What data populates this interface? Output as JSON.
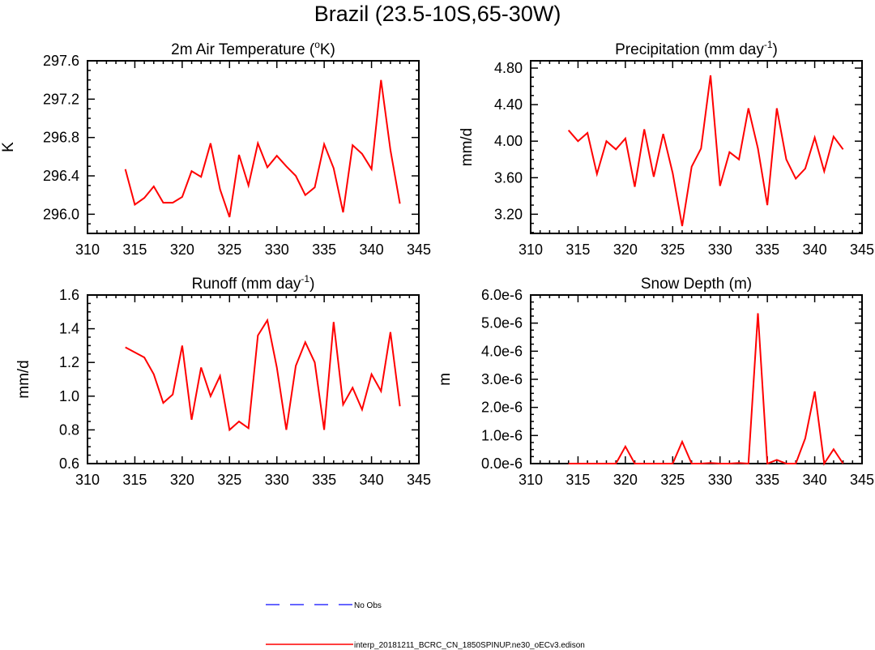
{
  "title": "Brazil (23.5-10S,65-30W)",
  "colors": {
    "model": "#ff0000",
    "obs": "#3333ff",
    "axis": "#000000"
  },
  "legend": {
    "obs_label": "No Obs",
    "model_label": "interp_20181211_BCRC_CN_1850SPINUP.ne30_oECv3.edison"
  },
  "chart_data": [
    {
      "type": "line",
      "title": "2m Air Temperature (",
      "title_sup_prefix": "o",
      "title_suffix": "K)",
      "ylabel": "K",
      "xlim": [
        310,
        345
      ],
      "ylim": [
        295.8,
        297.6
      ],
      "xticks": [
        "310",
        "315",
        "320",
        "325",
        "330",
        "335",
        "340",
        "345"
      ],
      "yticks": [
        "296.0",
        "296.4",
        "296.8",
        "297.2",
        "297.6"
      ],
      "ytick_values": [
        296.0,
        296.4,
        296.8,
        297.2,
        297.6
      ],
      "series": [
        {
          "name": "interp_20181211_BCRC_CN_1850SPINUP.ne30_oECv3.edison",
          "x": [
            314,
            315,
            316,
            317,
            318,
            319,
            320,
            321,
            322,
            323,
            324,
            325,
            326,
            327,
            328,
            329,
            330,
            331,
            332,
            333,
            334,
            335,
            336,
            337,
            338,
            339,
            340,
            341,
            342,
            343
          ],
          "values": [
            296.47,
            296.1,
            296.17,
            296.29,
            296.12,
            296.12,
            296.18,
            296.45,
            296.39,
            296.74,
            296.26,
            295.97,
            296.62,
            296.3,
            296.74,
            296.49,
            296.61,
            296.5,
            296.4,
            296.2,
            296.28,
            296.73,
            296.48,
            296.02,
            296.72,
            296.63,
            296.47,
            297.4,
            296.67,
            296.11
          ]
        }
      ]
    },
    {
      "type": "line",
      "title": "Precipitation (mm day",
      "title_sup_prefix": "",
      "title_sup": "-1",
      "title_suffix": ")",
      "ylabel": "mm/d",
      "xlim": [
        310,
        345
      ],
      "ylim": [
        2.99,
        4.88
      ],
      "xticks": [
        "310",
        "315",
        "320",
        "325",
        "330",
        "335",
        "340",
        "345"
      ],
      "yticks": [
        "3.20",
        "3.60",
        "4.00",
        "4.40",
        "4.80"
      ],
      "ytick_values": [
        3.2,
        3.6,
        4.0,
        4.4,
        4.8
      ],
      "series": [
        {
          "name": "interp_20181211_BCRC_CN_1850SPINUP.ne30_oECv3.edison",
          "x": [
            314,
            315,
            316,
            317,
            318,
            319,
            320,
            321,
            322,
            323,
            324,
            325,
            326,
            327,
            328,
            329,
            330,
            331,
            332,
            333,
            334,
            335,
            336,
            337,
            338,
            339,
            340,
            341,
            342,
            343
          ],
          "values": [
            4.12,
            4.0,
            4.09,
            3.64,
            4.0,
            3.91,
            4.03,
            3.5,
            4.13,
            3.61,
            4.08,
            3.65,
            3.07,
            3.72,
            3.92,
            4.72,
            3.51,
            3.88,
            3.8,
            4.36,
            3.92,
            3.3,
            4.36,
            3.8,
            3.59,
            3.7,
            4.04,
            3.67,
            4.05,
            3.91
          ]
        }
      ]
    },
    {
      "type": "line",
      "title": "Runoff (mm day",
      "title_sup": "-1",
      "title_suffix": ")",
      "ylabel": "mm/d",
      "xlim": [
        310,
        345
      ],
      "ylim": [
        0.6,
        1.6
      ],
      "xticks": [
        "310",
        "315",
        "320",
        "325",
        "330",
        "335",
        "340",
        "345"
      ],
      "yticks": [
        "0.6",
        "0.8",
        "1.0",
        "1.2",
        "1.4",
        "1.6"
      ],
      "ytick_values": [
        0.6,
        0.8,
        1.0,
        1.2,
        1.4,
        1.6
      ],
      "series": [
        {
          "name": "interp_20181211_BCRC_CN_1850SPINUP.ne30_oECv3.edison",
          "x": [
            314,
            315,
            316,
            317,
            318,
            319,
            320,
            321,
            322,
            323,
            324,
            325,
            326,
            327,
            328,
            329,
            330,
            331,
            332,
            333,
            334,
            335,
            336,
            337,
            338,
            339,
            340,
            341,
            342,
            343
          ],
          "values": [
            1.29,
            1.26,
            1.23,
            1.13,
            0.96,
            1.01,
            1.3,
            0.86,
            1.17,
            1.0,
            1.12,
            0.8,
            0.85,
            0.81,
            1.36,
            1.45,
            1.17,
            0.8,
            1.18,
            1.32,
            1.2,
            0.8,
            1.44,
            0.95,
            1.05,
            0.92,
            1.13,
            1.03,
            1.38,
            0.94
          ]
        }
      ]
    },
    {
      "type": "line",
      "title": "Snow Depth (m)",
      "ylabel": "m",
      "xlim": [
        310,
        345
      ],
      "ylim": [
        0,
        6e-06
      ],
      "xticks": [
        "310",
        "315",
        "320",
        "325",
        "330",
        "335",
        "340",
        "345"
      ],
      "yticks": [
        "0.0e-6",
        "1.0e-6",
        "2.0e-6",
        "3.0e-6",
        "4.0e-6",
        "5.0e-6",
        "6.0e-6"
      ],
      "ytick_values": [
        0,
        1e-06,
        2e-06,
        3e-06,
        4e-06,
        5e-06,
        6e-06
      ],
      "series": [
        {
          "name": "interp_20181211_BCRC_CN_1850SPINUP.ne30_oECv3.edison",
          "x": [
            314,
            315,
            316,
            317,
            318,
            319,
            320,
            321,
            322,
            323,
            324,
            325,
            326,
            327,
            328,
            329,
            330,
            331,
            332,
            333,
            334,
            335,
            336,
            337,
            338,
            339,
            340,
            341,
            342,
            343
          ],
          "values": [
            0,
            0,
            0,
            0,
            0,
            0,
            6.1e-07,
            0,
            0,
            0,
            0,
            0,
            7.8e-07,
            0,
            0,
            2e-08,
            0,
            0,
            2e-08,
            0,
            5.35e-06,
            0,
            1.3e-07,
            0,
            0,
            9e-07,
            2.57e-06,
            0,
            5.1e-07,
            0
          ]
        }
      ]
    }
  ]
}
